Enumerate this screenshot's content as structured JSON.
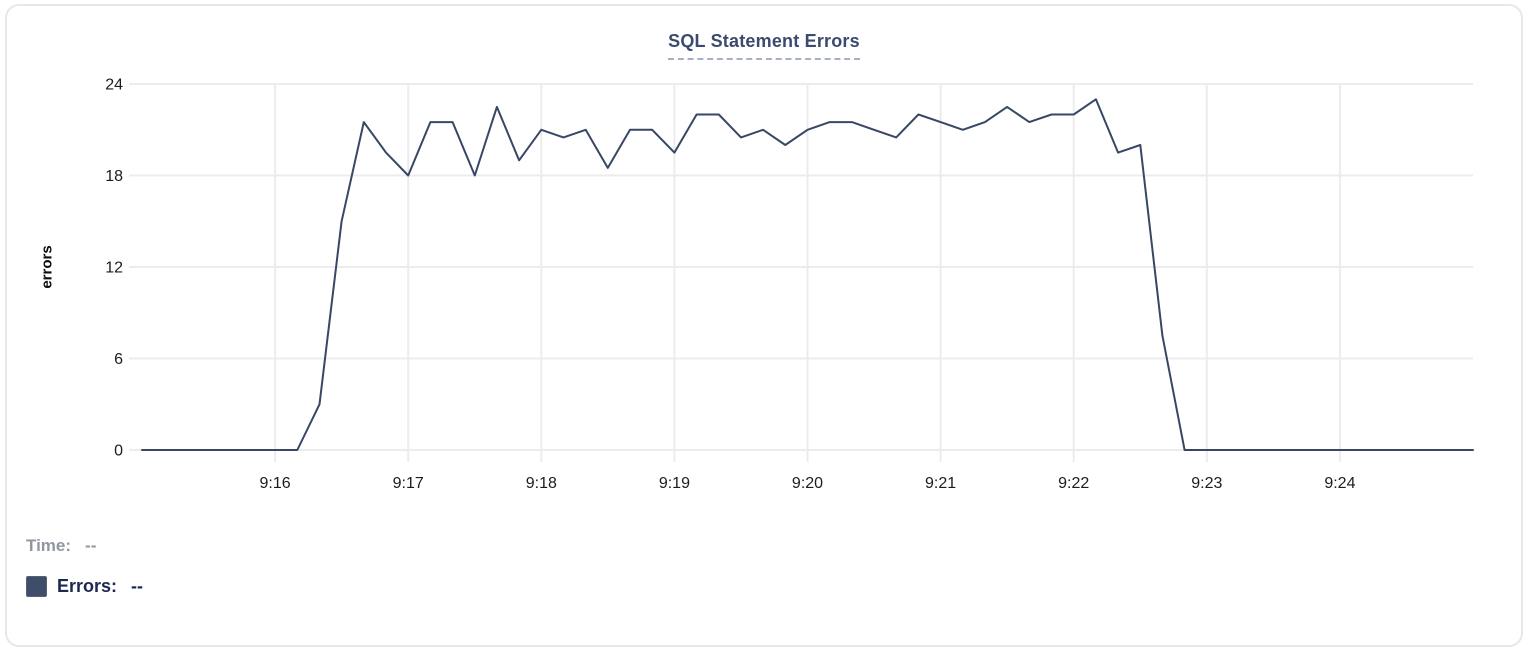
{
  "title": "SQL Statement Errors",
  "legend": {
    "time_label": "Time:",
    "time_value": "--",
    "errors_label": "Errors:",
    "errors_value": "--"
  },
  "colors": {
    "line": "#374764",
    "grid": "#ececee",
    "tick_text": "#1c1c1e",
    "title_text": "#3b4b6e",
    "legend_swatch": "#3e4d69",
    "time_text": "#9196a1",
    "errors_text": "#1c2850"
  },
  "chart_data": {
    "type": "line",
    "title": "SQL Statement Errors",
    "xlabel": "",
    "ylabel": "errors",
    "ylim": [
      0,
      24
    ],
    "yticks": [
      0,
      6,
      12,
      18,
      24
    ],
    "xticks": [
      {
        "label": "9:16",
        "s": 60
      },
      {
        "label": "9:17",
        "s": 120
      },
      {
        "label": "9:18",
        "s": 180
      },
      {
        "label": "9:19",
        "s": 240
      },
      {
        "label": "9:20",
        "s": 300
      },
      {
        "label": "9:21",
        "s": 360
      },
      {
        "label": "9:22",
        "s": 420
      },
      {
        "label": "9:23",
        "s": 480
      },
      {
        "label": "9:24",
        "s": 540
      }
    ],
    "grid": true,
    "legend_position": "bottom-left",
    "time_span_seconds": 600,
    "interval_seconds": 10,
    "series": [
      {
        "name": "Errors",
        "x_times": [
          "9:15:00",
          "9:15:10",
          "9:15:20",
          "9:15:30",
          "9:15:40",
          "9:15:50",
          "9:16:00",
          "9:16:10",
          "9:16:20",
          "9:16:30",
          "9:16:40",
          "9:16:50",
          "9:17:00",
          "9:17:10",
          "9:17:20",
          "9:17:30",
          "9:17:40",
          "9:17:50",
          "9:18:00",
          "9:18:10",
          "9:18:20",
          "9:18:30",
          "9:18:40",
          "9:18:50",
          "9:19:00",
          "9:19:10",
          "9:19:20",
          "9:19:30",
          "9:19:40",
          "9:19:50",
          "9:20:00",
          "9:20:10",
          "9:20:20",
          "9:20:30",
          "9:20:40",
          "9:20:50",
          "9:21:00",
          "9:21:10",
          "9:21:20",
          "9:21:30",
          "9:21:40",
          "9:21:50",
          "9:22:00",
          "9:22:10",
          "9:22:20",
          "9:22:30",
          "9:22:40",
          "9:22:50",
          "9:23:00",
          "9:23:10",
          "9:23:20",
          "9:23:30",
          "9:23:40",
          "9:23:50",
          "9:24:00",
          "9:24:10",
          "9:24:20",
          "9:24:30",
          "9:24:40",
          "9:24:50",
          "9:25:00"
        ],
        "values": [
          0,
          0,
          0,
          0,
          0,
          0,
          0,
          0,
          3,
          15,
          21.5,
          19.5,
          18,
          21.5,
          21.5,
          18,
          22.5,
          19,
          21,
          20.5,
          21,
          18.5,
          21,
          21,
          19.5,
          22,
          22,
          20.5,
          21,
          20,
          21,
          21.5,
          21.5,
          21,
          20.5,
          22,
          21.5,
          21,
          21.5,
          22.5,
          21.5,
          22,
          22,
          23,
          19.5,
          20,
          7.5,
          0,
          0,
          0,
          0,
          0,
          0,
          0,
          0,
          0,
          0,
          0,
          0,
          0,
          0
        ]
      }
    ]
  }
}
